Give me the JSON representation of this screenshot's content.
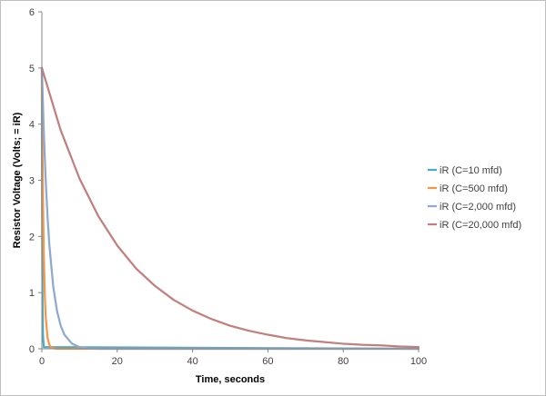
{
  "chart_data": {
    "type": "line",
    "title": "",
    "xlabel": "Time, seconds",
    "ylabel": "Resistor Voltage (Volts; = iR)",
    "xlim": [
      0,
      100
    ],
    "ylim": [
      0,
      6
    ],
    "x_ticks": [
      0,
      20,
      40,
      60,
      80,
      100
    ],
    "y_ticks": [
      0,
      1,
      2,
      3,
      4,
      5,
      6
    ],
    "grid": false,
    "legend_position": "right",
    "series": [
      {
        "name": "iR (C=10 mfd)",
        "color": "#4BACC6",
        "x": [
          0,
          0.01,
          0.02,
          0.03,
          0.05,
          0.07,
          0.1,
          0.15,
          0.2,
          0.3,
          0.5,
          100
        ],
        "y": [
          5,
          4.52,
          4.09,
          3.7,
          3.03,
          2.48,
          1.84,
          1.12,
          0.68,
          0.25,
          0.03,
          0
        ]
      },
      {
        "name": "iR (C=500 mfd)",
        "color": "#F79646",
        "x": [
          0,
          0.1,
          0.25,
          0.5,
          0.75,
          1,
          1.5,
          2,
          2.5,
          3,
          4,
          5,
          100
        ],
        "y": [
          5,
          4.04,
          2.93,
          1.72,
          1.01,
          0.59,
          0.2,
          0.07,
          0.02,
          0.01,
          0,
          0,
          0
        ]
      },
      {
        "name": "iR (C=2,000 mfd)",
        "color": "#8EA9CF",
        "x": [
          0,
          0.5,
          1,
          1.5,
          2,
          3,
          4,
          5,
          6,
          8,
          10,
          12,
          15,
          20,
          100
        ],
        "y": [
          5,
          3.89,
          3.03,
          2.36,
          1.84,
          1.12,
          0.68,
          0.41,
          0.25,
          0.09,
          0.03,
          0.01,
          0,
          0,
          0
        ]
      },
      {
        "name": "iR (C=20,000 mfd)",
        "color": "#C0807E",
        "x": [
          0,
          5,
          10,
          15,
          20,
          25,
          30,
          35,
          40,
          45,
          50,
          55,
          60,
          65,
          70,
          75,
          80,
          85,
          90,
          95,
          100
        ],
        "y": [
          5,
          3.89,
          3.03,
          2.36,
          1.84,
          1.43,
          1.12,
          0.87,
          0.68,
          0.53,
          0.41,
          0.32,
          0.25,
          0.19,
          0.15,
          0.12,
          0.09,
          0.07,
          0.06,
          0.04,
          0.03
        ]
      }
    ]
  }
}
